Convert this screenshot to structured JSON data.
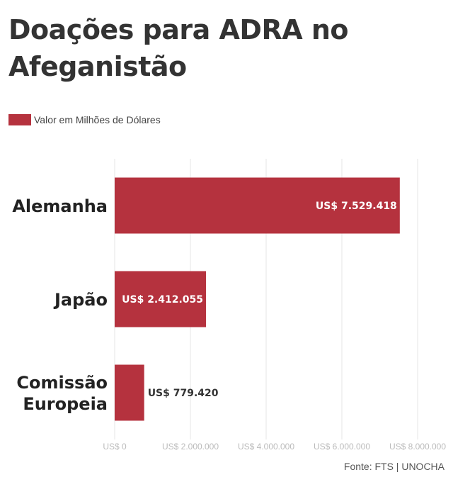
{
  "header": {
    "title": "Doações para ADRA no Afeganistão"
  },
  "legend": {
    "label": "Valor em Milhões de Dólares",
    "color": "#b5323e"
  },
  "source": "Fonte: FTS | UNOCHA",
  "chart_data": {
    "type": "bar",
    "orientation": "horizontal",
    "categories": [
      "Alemanha",
      "Japão",
      "Comissão Europeia"
    ],
    "category_lines": [
      [
        "Alemanha"
      ],
      [
        "Japão"
      ],
      [
        "Comissão",
        "Europeia"
      ]
    ],
    "series": [
      {
        "name": "Valor em Milhões de Dólares",
        "values": [
          7529418,
          2412055,
          779420
        ],
        "labels": [
          "US$ 7.529.418",
          "US$ 2.412.055",
          "US$ 779.420"
        ]
      }
    ],
    "xlim": [
      0,
      8000000
    ],
    "xticks": [
      0,
      2000000,
      4000000,
      6000000,
      8000000
    ],
    "xtick_labels": [
      "US$ 0",
      "US$ 2.000.000",
      "US$ 4.000.000",
      "US$ 6.000.000",
      "US$ 8.000.000"
    ],
    "grid": true,
    "legend_position": "top-left",
    "colors": {
      "bar": "#b5323e",
      "grid": "#e6e6e6",
      "tick": "#bbbbbb",
      "label_inside": "#ffffff",
      "label_outside": "#333333",
      "category": "#222222"
    }
  }
}
